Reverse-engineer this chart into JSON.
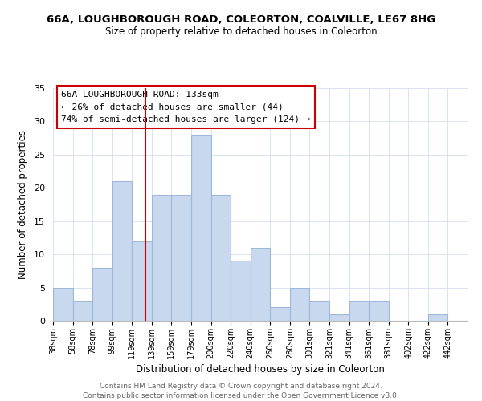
{
  "title1": "66A, LOUGHBOROUGH ROAD, COLEORTON, COALVILLE, LE67 8HG",
  "title2": "Size of property relative to detached houses in Coleorton",
  "xlabel": "Distribution of detached houses by size in Coleorton",
  "ylabel": "Number of detached properties",
  "bin_labels": [
    "38sqm",
    "58sqm",
    "78sqm",
    "99sqm",
    "119sqm",
    "139sqm",
    "159sqm",
    "179sqm",
    "200sqm",
    "220sqm",
    "240sqm",
    "260sqm",
    "280sqm",
    "301sqm",
    "321sqm",
    "341sqm",
    "361sqm",
    "381sqm",
    "402sqm",
    "422sqm",
    "442sqm"
  ],
  "bar_heights": [
    5,
    3,
    8,
    21,
    12,
    19,
    19,
    28,
    19,
    9,
    11,
    2,
    5,
    3,
    1,
    3,
    3,
    0,
    0,
    1,
    0
  ],
  "bar_color": "#c8d8ee",
  "bar_edge_color": "#a0b8d8",
  "vline_color": "#cc0000",
  "annotation_text": "66A LOUGHBOROUGH ROAD: 133sqm\n← 26% of detached houses are smaller (44)\n74% of semi-detached houses are larger (124) →",
  "annotation_box_edge": "#cc0000",
  "ylim": [
    0,
    35
  ],
  "yticks": [
    0,
    5,
    10,
    15,
    20,
    25,
    30,
    35
  ],
  "footer1": "Contains HM Land Registry data © Crown copyright and database right 2024.",
  "footer2": "Contains public sector information licensed under the Open Government Licence v3.0.",
  "bg_color": "#ffffff",
  "grid_color": "#d8e4f0"
}
